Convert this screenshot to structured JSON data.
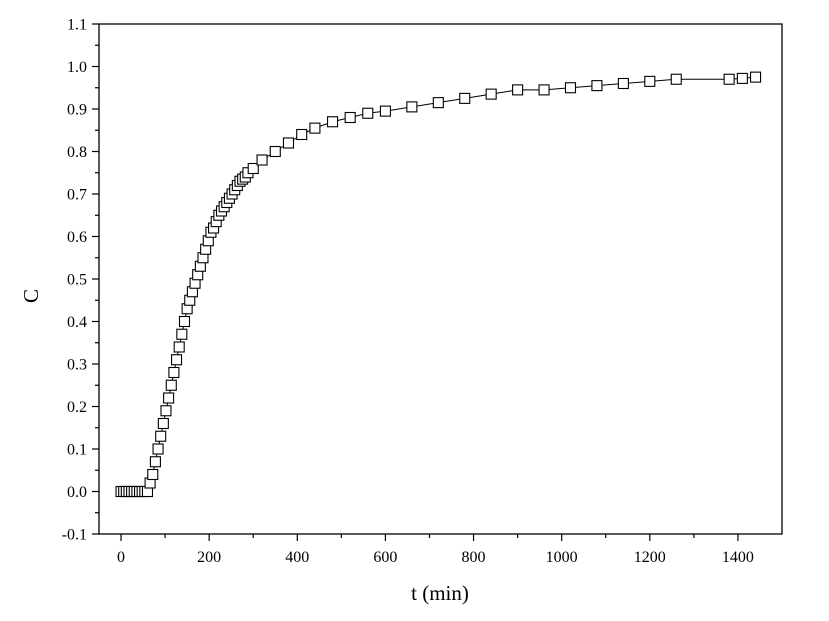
{
  "chart_data": {
    "type": "scatter",
    "title": "",
    "xlabel": "t (min)",
    "ylabel": "C",
    "xlim": [
      -50,
      1500
    ],
    "ylim": [
      -0.1,
      1.1
    ],
    "xticks": [
      0,
      200,
      400,
      600,
      800,
      1000,
      1200,
      1400
    ],
    "yticks": [
      -0.1,
      0.0,
      0.1,
      0.2,
      0.3,
      0.4,
      0.5,
      0.6,
      0.7,
      0.8,
      0.9,
      1.0,
      1.1
    ],
    "xtick_labels": [
      "0",
      "200",
      "400",
      "600",
      "800",
      "1000",
      "1200",
      "1400"
    ],
    "ytick_labels": [
      "-0.1",
      "0.0",
      "0.1",
      "0.2",
      "0.3",
      "0.4",
      "0.5",
      "0.6",
      "0.7",
      "0.8",
      "0.9",
      "1.0",
      "1.1"
    ],
    "grid": false,
    "marker": "open-square",
    "connected": true,
    "series": [
      {
        "x": [
          0,
          6,
          12,
          18,
          24,
          30,
          36,
          42,
          48,
          54,
          60,
          66,
          72,
          78,
          84,
          90,
          96,
          102,
          108,
          114,
          120,
          126,
          132,
          138,
          144,
          150,
          156,
          162,
          168,
          174,
          180,
          186,
          192,
          198,
          204,
          210,
          216,
          222,
          228,
          234,
          240,
          246,
          252,
          258,
          264,
          270,
          276,
          282,
          288,
          300,
          320,
          350,
          380,
          410,
          440,
          480,
          520,
          560,
          600,
          660,
          720,
          780,
          840,
          900,
          960,
          1020,
          1080,
          1140,
          1200,
          1260,
          1380,
          1410,
          1440
        ],
        "y": [
          0.0,
          0.0,
          0.0,
          0.0,
          0.0,
          0.0,
          0.0,
          0.0,
          0.0,
          0.0,
          0.0,
          0.02,
          0.04,
          0.07,
          0.1,
          0.13,
          0.16,
          0.19,
          0.22,
          0.25,
          0.28,
          0.31,
          0.34,
          0.37,
          0.4,
          0.43,
          0.45,
          0.47,
          0.49,
          0.51,
          0.53,
          0.55,
          0.57,
          0.59,
          0.61,
          0.62,
          0.635,
          0.65,
          0.66,
          0.67,
          0.68,
          0.69,
          0.7,
          0.71,
          0.72,
          0.73,
          0.735,
          0.74,
          0.75,
          0.76,
          0.78,
          0.8,
          0.82,
          0.84,
          0.855,
          0.87,
          0.88,
          0.89,
          0.895,
          0.905,
          0.915,
          0.925,
          0.935,
          0.945,
          0.945,
          0.95,
          0.955,
          0.96,
          0.965,
          0.97,
          0.97,
          0.972,
          0.975
        ]
      }
    ]
  }
}
